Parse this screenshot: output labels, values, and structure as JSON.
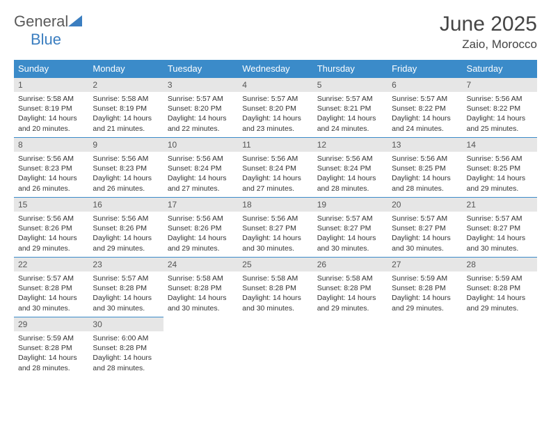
{
  "logo": {
    "part1": "General",
    "part2": "Blue"
  },
  "title": "June 2025",
  "location": "Zaio, Morocco",
  "colors": {
    "header_bg": "#3b8bc9",
    "header_text": "#ffffff",
    "daynum_bg": "#e6e6e6",
    "border": "#3b8bc9",
    "logo_gray": "#5a5a5a",
    "logo_blue": "#3b7ec0"
  },
  "weekdays": [
    "Sunday",
    "Monday",
    "Tuesday",
    "Wednesday",
    "Thursday",
    "Friday",
    "Saturday"
  ],
  "weeks": [
    [
      {
        "n": "1",
        "sr": "5:58 AM",
        "ss": "8:19 PM",
        "dl": "14 hours and 20 minutes."
      },
      {
        "n": "2",
        "sr": "5:58 AM",
        "ss": "8:19 PM",
        "dl": "14 hours and 21 minutes."
      },
      {
        "n": "3",
        "sr": "5:57 AM",
        "ss": "8:20 PM",
        "dl": "14 hours and 22 minutes."
      },
      {
        "n": "4",
        "sr": "5:57 AM",
        "ss": "8:20 PM",
        "dl": "14 hours and 23 minutes."
      },
      {
        "n": "5",
        "sr": "5:57 AM",
        "ss": "8:21 PM",
        "dl": "14 hours and 24 minutes."
      },
      {
        "n": "6",
        "sr": "5:57 AM",
        "ss": "8:22 PM",
        "dl": "14 hours and 24 minutes."
      },
      {
        "n": "7",
        "sr": "5:56 AM",
        "ss": "8:22 PM",
        "dl": "14 hours and 25 minutes."
      }
    ],
    [
      {
        "n": "8",
        "sr": "5:56 AM",
        "ss": "8:23 PM",
        "dl": "14 hours and 26 minutes."
      },
      {
        "n": "9",
        "sr": "5:56 AM",
        "ss": "8:23 PM",
        "dl": "14 hours and 26 minutes."
      },
      {
        "n": "10",
        "sr": "5:56 AM",
        "ss": "8:24 PM",
        "dl": "14 hours and 27 minutes."
      },
      {
        "n": "11",
        "sr": "5:56 AM",
        "ss": "8:24 PM",
        "dl": "14 hours and 27 minutes."
      },
      {
        "n": "12",
        "sr": "5:56 AM",
        "ss": "8:24 PM",
        "dl": "14 hours and 28 minutes."
      },
      {
        "n": "13",
        "sr": "5:56 AM",
        "ss": "8:25 PM",
        "dl": "14 hours and 28 minutes."
      },
      {
        "n": "14",
        "sr": "5:56 AM",
        "ss": "8:25 PM",
        "dl": "14 hours and 29 minutes."
      }
    ],
    [
      {
        "n": "15",
        "sr": "5:56 AM",
        "ss": "8:26 PM",
        "dl": "14 hours and 29 minutes."
      },
      {
        "n": "16",
        "sr": "5:56 AM",
        "ss": "8:26 PM",
        "dl": "14 hours and 29 minutes."
      },
      {
        "n": "17",
        "sr": "5:56 AM",
        "ss": "8:26 PM",
        "dl": "14 hours and 29 minutes."
      },
      {
        "n": "18",
        "sr": "5:56 AM",
        "ss": "8:27 PM",
        "dl": "14 hours and 30 minutes."
      },
      {
        "n": "19",
        "sr": "5:57 AM",
        "ss": "8:27 PM",
        "dl": "14 hours and 30 minutes."
      },
      {
        "n": "20",
        "sr": "5:57 AM",
        "ss": "8:27 PM",
        "dl": "14 hours and 30 minutes."
      },
      {
        "n": "21",
        "sr": "5:57 AM",
        "ss": "8:27 PM",
        "dl": "14 hours and 30 minutes."
      }
    ],
    [
      {
        "n": "22",
        "sr": "5:57 AM",
        "ss": "8:28 PM",
        "dl": "14 hours and 30 minutes."
      },
      {
        "n": "23",
        "sr": "5:57 AM",
        "ss": "8:28 PM",
        "dl": "14 hours and 30 minutes."
      },
      {
        "n": "24",
        "sr": "5:58 AM",
        "ss": "8:28 PM",
        "dl": "14 hours and 30 minutes."
      },
      {
        "n": "25",
        "sr": "5:58 AM",
        "ss": "8:28 PM",
        "dl": "14 hours and 30 minutes."
      },
      {
        "n": "26",
        "sr": "5:58 AM",
        "ss": "8:28 PM",
        "dl": "14 hours and 29 minutes."
      },
      {
        "n": "27",
        "sr": "5:59 AM",
        "ss": "8:28 PM",
        "dl": "14 hours and 29 minutes."
      },
      {
        "n": "28",
        "sr": "5:59 AM",
        "ss": "8:28 PM",
        "dl": "14 hours and 29 minutes."
      }
    ],
    [
      {
        "n": "29",
        "sr": "5:59 AM",
        "ss": "8:28 PM",
        "dl": "14 hours and 28 minutes."
      },
      {
        "n": "30",
        "sr": "6:00 AM",
        "ss": "8:28 PM",
        "dl": "14 hours and 28 minutes."
      },
      null,
      null,
      null,
      null,
      null
    ]
  ],
  "labels": {
    "sunrise": "Sunrise: ",
    "sunset": "Sunset: ",
    "daylight": "Daylight: "
  }
}
